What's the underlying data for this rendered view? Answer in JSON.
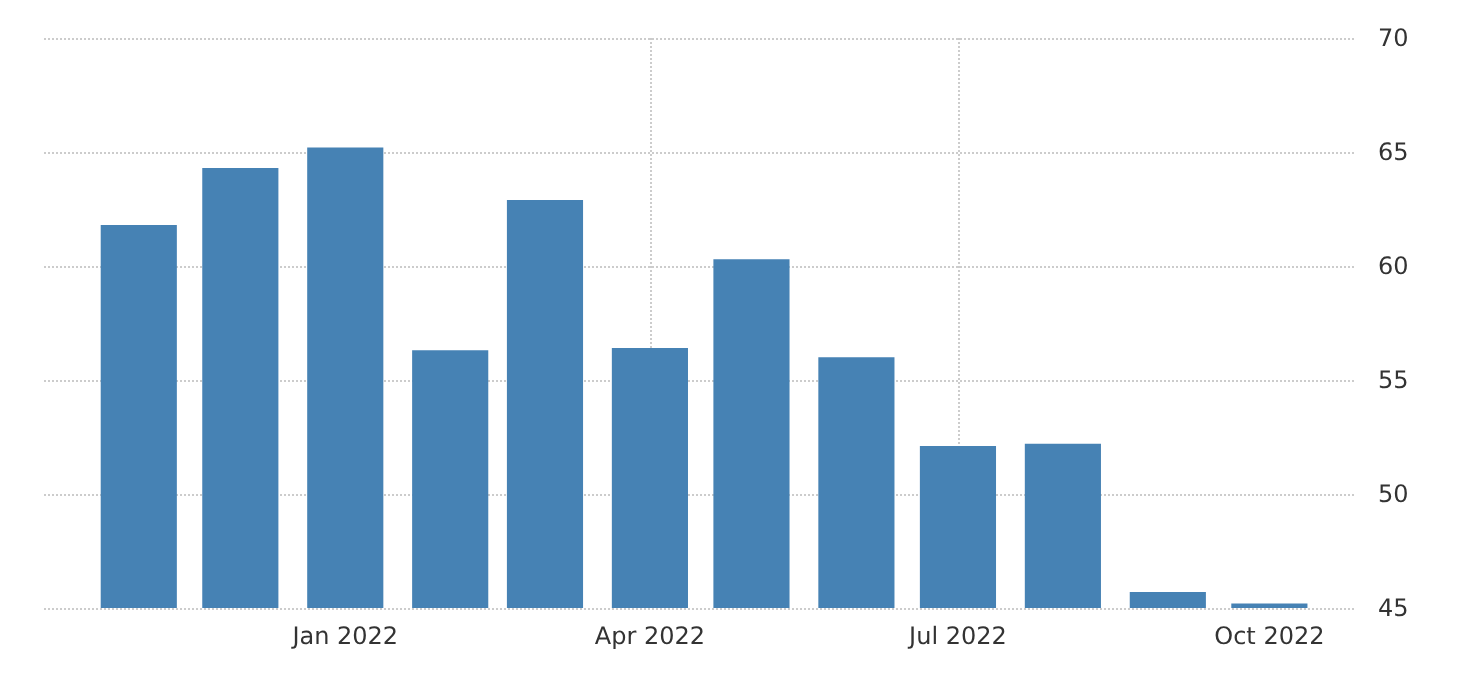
{
  "chart_data": {
    "type": "bar",
    "x": [
      "2021-11",
      "2021-12",
      "2022-01",
      "2022-02",
      "2022-03",
      "2022-04",
      "2022-05",
      "2022-06",
      "2022-07",
      "2022-08",
      "2022-09",
      "2022-10"
    ],
    "values": [
      61.8,
      64.3,
      65.2,
      56.3,
      62.9,
      56.4,
      60.3,
      56.0,
      52.1,
      52.2,
      45.7,
      45.2
    ],
    "color": "#4682b4",
    "xlim": [
      "2021-10-04",
      "2022-10-26"
    ],
    "xticks": [
      {
        "value": "2022-01",
        "label": "Jan 2022"
      },
      {
        "value": "2022-04",
        "label": "Apr 2022"
      },
      {
        "value": "2022-07",
        "label": "Jul 2022"
      },
      {
        "value": "2022-10",
        "label": "Oct 2022"
      }
    ],
    "ylim": [
      45,
      70
    ],
    "yticks": [
      45,
      50,
      55,
      60,
      65,
      70
    ],
    "grid": true
  }
}
